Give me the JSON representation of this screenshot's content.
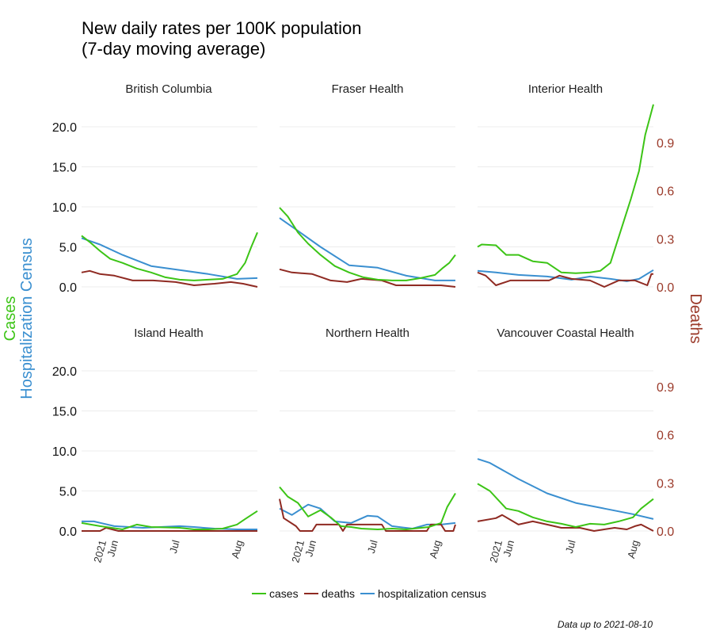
{
  "title_line1": "New daily rates per 100K population",
  "title_line2": "(7-day moving average)",
  "left_axis_title_line1": "Cases",
  "left_axis_title_line2": "Hospitalization Census",
  "right_axis_title": "Deaths",
  "caption": "Data up to 2021-08-10",
  "legend": [
    {
      "key": "cases",
      "label": "cases",
      "color": "#3cc416"
    },
    {
      "key": "deaths",
      "label": "deaths",
      "color": "#8f2a22"
    },
    {
      "key": "hospitalization",
      "label": "hospitalization census",
      "color": "#3a8fd0"
    }
  ],
  "chart_data": {
    "type": "line",
    "facets": [
      "British Columbia",
      "Fraser Health",
      "Interior Health",
      "Island Health",
      "Northern Health",
      "Vancouver Coastal Health"
    ],
    "x_range": [
      "2021-05-16",
      "2021-08-10"
    ],
    "x_tick_labels": [
      "2021\nJun",
      "Jul",
      "Aug"
    ],
    "left_axis": {
      "ticks": [
        "0.0",
        "5.0",
        "10.0",
        "15.0",
        "20.0"
      ],
      "ylim": [
        0,
        22.5
      ]
    },
    "right_axis": {
      "ticks": [
        "0.0",
        "0.3",
        "0.6",
        "0.9"
      ],
      "ylim": [
        0,
        1.15
      ]
    },
    "grid": true,
    "legend_position": "bottom",
    "panels": [
      {
        "name": "British Columbia",
        "cases": [
          [
            "2021-05-16",
            6.4
          ],
          [
            "2021-05-20",
            5.6
          ],
          [
            "2021-05-25",
            4.5
          ],
          [
            "2021-05-30",
            3.5
          ],
          [
            "2021-06-05",
            3.0
          ],
          [
            "2021-06-12",
            2.3
          ],
          [
            "2021-06-19",
            1.8
          ],
          [
            "2021-06-26",
            1.2
          ],
          [
            "2021-07-03",
            0.9
          ],
          [
            "2021-07-10",
            0.8
          ],
          [
            "2021-07-17",
            0.9
          ],
          [
            "2021-07-24",
            1.0
          ],
          [
            "2021-07-31",
            1.6
          ],
          [
            "2021-08-04",
            3.0
          ],
          [
            "2021-08-07",
            5.0
          ],
          [
            "2021-08-10",
            6.8
          ]
        ],
        "hospitalization": [
          [
            "2021-05-16",
            6.1
          ],
          [
            "2021-05-25",
            5.3
          ],
          [
            "2021-06-05",
            4.0
          ],
          [
            "2021-06-19",
            2.6
          ],
          [
            "2021-07-03",
            2.1
          ],
          [
            "2021-07-17",
            1.6
          ],
          [
            "2021-07-31",
            1.0
          ],
          [
            "2021-08-10",
            1.1
          ]
        ],
        "deaths": [
          [
            "2021-05-16",
            0.09
          ],
          [
            "2021-05-20",
            0.1
          ],
          [
            "2021-05-25",
            0.08
          ],
          [
            "2021-06-01",
            0.07
          ],
          [
            "2021-06-10",
            0.04
          ],
          [
            "2021-06-20",
            0.04
          ],
          [
            "2021-07-01",
            0.03
          ],
          [
            "2021-07-10",
            0.01
          ],
          [
            "2021-07-20",
            0.02
          ],
          [
            "2021-07-28",
            0.03
          ],
          [
            "2021-08-03",
            0.02
          ],
          [
            "2021-08-10",
            0.0
          ]
        ]
      },
      {
        "name": "Fraser Health",
        "cases": [
          [
            "2021-05-16",
            9.9
          ],
          [
            "2021-05-20",
            8.8
          ],
          [
            "2021-05-25",
            6.8
          ],
          [
            "2021-05-30",
            5.4
          ],
          [
            "2021-06-05",
            4.0
          ],
          [
            "2021-06-12",
            2.6
          ],
          [
            "2021-06-19",
            1.8
          ],
          [
            "2021-06-26",
            1.2
          ],
          [
            "2021-07-03",
            0.9
          ],
          [
            "2021-07-10",
            0.8
          ],
          [
            "2021-07-17",
            0.8
          ],
          [
            "2021-07-24",
            1.1
          ],
          [
            "2021-07-31",
            1.5
          ],
          [
            "2021-08-04",
            2.4
          ],
          [
            "2021-08-07",
            3.0
          ],
          [
            "2021-08-10",
            4.0
          ]
        ],
        "hospitalization": [
          [
            "2021-05-16",
            8.6
          ],
          [
            "2021-05-25",
            7.0
          ],
          [
            "2021-06-05",
            5.0
          ],
          [
            "2021-06-19",
            2.7
          ],
          [
            "2021-07-03",
            2.4
          ],
          [
            "2021-07-17",
            1.4
          ],
          [
            "2021-07-31",
            0.8
          ],
          [
            "2021-08-10",
            0.8
          ]
        ],
        "deaths": [
          [
            "2021-05-16",
            0.11
          ],
          [
            "2021-05-22",
            0.09
          ],
          [
            "2021-06-01",
            0.08
          ],
          [
            "2021-06-10",
            0.04
          ],
          [
            "2021-06-18",
            0.03
          ],
          [
            "2021-06-25",
            0.05
          ],
          [
            "2021-07-05",
            0.04
          ],
          [
            "2021-07-12",
            0.01
          ],
          [
            "2021-07-25",
            0.01
          ],
          [
            "2021-08-03",
            0.01
          ],
          [
            "2021-08-10",
            0.0
          ]
        ]
      },
      {
        "name": "Interior Health",
        "cases": [
          [
            "2021-05-16",
            5.0
          ],
          [
            "2021-05-18",
            5.3
          ],
          [
            "2021-05-25",
            5.2
          ],
          [
            "2021-05-30",
            4.0
          ],
          [
            "2021-06-05",
            4.0
          ],
          [
            "2021-06-12",
            3.2
          ],
          [
            "2021-06-19",
            3.0
          ],
          [
            "2021-06-26",
            1.8
          ],
          [
            "2021-07-03",
            1.7
          ],
          [
            "2021-07-10",
            1.8
          ],
          [
            "2021-07-15",
            2.0
          ],
          [
            "2021-07-20",
            3.0
          ],
          [
            "2021-07-25",
            7.0
          ],
          [
            "2021-07-30",
            11.0
          ],
          [
            "2021-08-03",
            14.5
          ],
          [
            "2021-08-06",
            19.0
          ],
          [
            "2021-08-10",
            22.8
          ]
        ],
        "hospitalization": [
          [
            "2021-05-16",
            2.0
          ],
          [
            "2021-05-25",
            1.8
          ],
          [
            "2021-06-05",
            1.5
          ],
          [
            "2021-06-19",
            1.3
          ],
          [
            "2021-07-01",
            0.9
          ],
          [
            "2021-07-10",
            1.3
          ],
          [
            "2021-07-20",
            1.0
          ],
          [
            "2021-07-28",
            0.7
          ],
          [
            "2021-08-03",
            1.0
          ],
          [
            "2021-08-10",
            2.1
          ]
        ],
        "deaths": [
          [
            "2021-05-16",
            0.09
          ],
          [
            "2021-05-20",
            0.07
          ],
          [
            "2021-05-25",
            0.01
          ],
          [
            "2021-06-01",
            0.04
          ],
          [
            "2021-06-10",
            0.04
          ],
          [
            "2021-06-20",
            0.04
          ],
          [
            "2021-06-25",
            0.07
          ],
          [
            "2021-07-01",
            0.05
          ],
          [
            "2021-07-10",
            0.04
          ],
          [
            "2021-07-17",
            0.0
          ],
          [
            "2021-07-24",
            0.04
          ],
          [
            "2021-08-01",
            0.04
          ],
          [
            "2021-08-07",
            0.01
          ],
          [
            "2021-08-09",
            0.08
          ],
          [
            "2021-08-10",
            0.08
          ]
        ]
      },
      {
        "name": "Island Health",
        "cases": [
          [
            "2021-05-16",
            1.0
          ],
          [
            "2021-05-25",
            0.6
          ],
          [
            "2021-06-05",
            0.2
          ],
          [
            "2021-06-12",
            0.8
          ],
          [
            "2021-06-19",
            0.5
          ],
          [
            "2021-07-03",
            0.4
          ],
          [
            "2021-07-10",
            0.2
          ],
          [
            "2021-07-17",
            0.2
          ],
          [
            "2021-07-24",
            0.3
          ],
          [
            "2021-07-31",
            0.8
          ],
          [
            "2021-08-04",
            1.5
          ],
          [
            "2021-08-10",
            2.5
          ]
        ],
        "hospitalization": [
          [
            "2021-05-16",
            1.2
          ],
          [
            "2021-05-22",
            1.2
          ],
          [
            "2021-06-01",
            0.6
          ],
          [
            "2021-06-15",
            0.4
          ],
          [
            "2021-07-03",
            0.6
          ],
          [
            "2021-07-10",
            0.5
          ],
          [
            "2021-07-20",
            0.3
          ],
          [
            "2021-07-31",
            0.2
          ],
          [
            "2021-08-10",
            0.2
          ]
        ],
        "deaths": [
          [
            "2021-05-16",
            0.0
          ],
          [
            "2021-05-25",
            0.0
          ],
          [
            "2021-05-28",
            0.02
          ],
          [
            "2021-06-03",
            0.0
          ],
          [
            "2021-07-01",
            0.0
          ],
          [
            "2021-07-15",
            0.0
          ],
          [
            "2021-08-10",
            0.0
          ]
        ]
      },
      {
        "name": "Northern Health",
        "cases": [
          [
            "2021-05-16",
            5.5
          ],
          [
            "2021-05-20",
            4.3
          ],
          [
            "2021-05-25",
            3.5
          ],
          [
            "2021-05-30",
            1.8
          ],
          [
            "2021-06-05",
            2.6
          ],
          [
            "2021-06-10",
            1.7
          ],
          [
            "2021-06-15",
            0.6
          ],
          [
            "2021-06-20",
            0.5
          ],
          [
            "2021-06-25",
            0.3
          ],
          [
            "2021-07-03",
            0.2
          ],
          [
            "2021-07-10",
            0.3
          ],
          [
            "2021-07-17",
            0.2
          ],
          [
            "2021-07-28",
            0.5
          ],
          [
            "2021-08-03",
            1.0
          ],
          [
            "2021-08-06",
            3.0
          ],
          [
            "2021-08-10",
            4.7
          ]
        ],
        "hospitalization": [
          [
            "2021-05-16",
            2.8
          ],
          [
            "2021-05-22",
            2.0
          ],
          [
            "2021-05-30",
            3.3
          ],
          [
            "2021-06-05",
            2.8
          ],
          [
            "2021-06-12",
            1.2
          ],
          [
            "2021-06-20",
            1.0
          ],
          [
            "2021-06-28",
            1.9
          ],
          [
            "2021-07-03",
            1.8
          ],
          [
            "2021-07-10",
            0.6
          ],
          [
            "2021-07-20",
            0.3
          ],
          [
            "2021-07-27",
            0.8
          ],
          [
            "2021-08-03",
            0.8
          ],
          [
            "2021-08-10",
            1.0
          ]
        ],
        "deaths": [
          [
            "2021-05-16",
            0.2
          ],
          [
            "2021-05-18",
            0.08
          ],
          [
            "2021-05-24",
            0.03
          ],
          [
            "2021-05-26",
            0.0
          ],
          [
            "2021-06-01",
            0.0
          ],
          [
            "2021-06-03",
            0.04
          ],
          [
            "2021-06-14",
            0.04
          ],
          [
            "2021-06-16",
            0.0
          ],
          [
            "2021-06-18",
            0.04
          ],
          [
            "2021-07-05",
            0.04
          ],
          [
            "2021-07-07",
            0.0
          ],
          [
            "2021-07-27",
            0.0
          ],
          [
            "2021-07-29",
            0.04
          ],
          [
            "2021-08-03",
            0.04
          ],
          [
            "2021-08-05",
            0.0
          ],
          [
            "2021-08-09",
            0.0
          ],
          [
            "2021-08-10",
            0.04
          ]
        ]
      },
      {
        "name": "Vancouver Coastal Health",
        "cases": [
          [
            "2021-05-16",
            5.9
          ],
          [
            "2021-05-22",
            5.0
          ],
          [
            "2021-05-30",
            2.8
          ],
          [
            "2021-06-05",
            2.5
          ],
          [
            "2021-06-12",
            1.7
          ],
          [
            "2021-06-19",
            1.2
          ],
          [
            "2021-06-26",
            0.9
          ],
          [
            "2021-07-03",
            0.5
          ],
          [
            "2021-07-10",
            0.9
          ],
          [
            "2021-07-17",
            0.8
          ],
          [
            "2021-07-24",
            1.2
          ],
          [
            "2021-07-31",
            1.7
          ],
          [
            "2021-08-04",
            2.8
          ],
          [
            "2021-08-10",
            4.0
          ]
        ],
        "hospitalization": [
          [
            "2021-05-16",
            9.0
          ],
          [
            "2021-05-22",
            8.5
          ],
          [
            "2021-06-05",
            6.5
          ],
          [
            "2021-06-19",
            4.7
          ],
          [
            "2021-07-03",
            3.5
          ],
          [
            "2021-07-17",
            2.8
          ],
          [
            "2021-07-31",
            2.1
          ],
          [
            "2021-08-10",
            1.5
          ]
        ],
        "deaths": [
          [
            "2021-05-16",
            0.06
          ],
          [
            "2021-05-25",
            0.08
          ],
          [
            "2021-05-28",
            0.1
          ],
          [
            "2021-06-05",
            0.04
          ],
          [
            "2021-06-12",
            0.06
          ],
          [
            "2021-06-19",
            0.04
          ],
          [
            "2021-06-26",
            0.02
          ],
          [
            "2021-07-05",
            0.02
          ],
          [
            "2021-07-12",
            0.0
          ],
          [
            "2021-07-22",
            0.02
          ],
          [
            "2021-07-28",
            0.01
          ],
          [
            "2021-08-01",
            0.03
          ],
          [
            "2021-08-04",
            0.04
          ],
          [
            "2021-08-10",
            0.0
          ]
        ]
      }
    ]
  }
}
